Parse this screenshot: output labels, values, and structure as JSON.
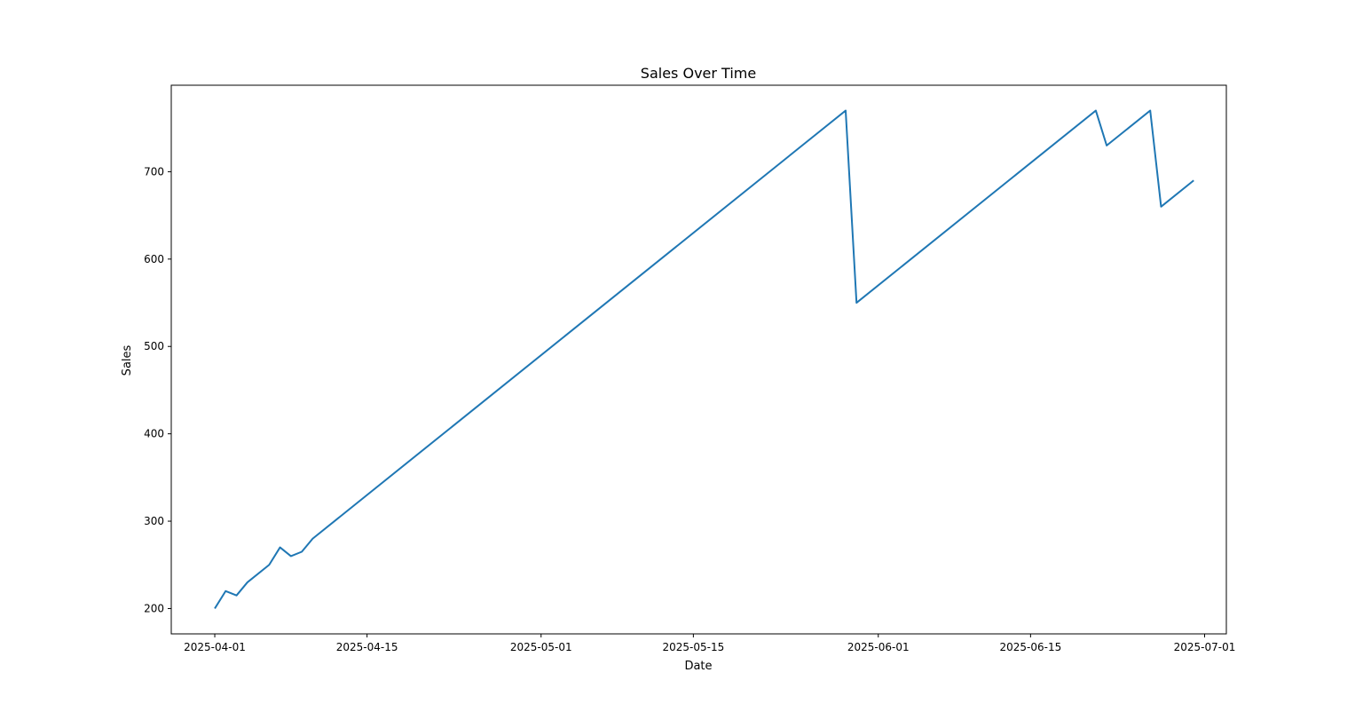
{
  "chart_data": {
    "type": "line",
    "title": "Sales Over Time",
    "xlabel": "Date",
    "ylabel": "Sales",
    "x_axis_type": "date",
    "xlim": [
      "2025-03-28",
      "2025-07-03"
    ],
    "ylim": [
      171,
      799
    ],
    "grid": false,
    "legend": "none",
    "x_ticks": [
      "2025-04-01",
      "2025-04-15",
      "2025-05-01",
      "2025-05-15",
      "2025-06-01",
      "2025-06-15",
      "2025-07-01"
    ],
    "y_ticks": [
      200,
      300,
      400,
      500,
      600,
      700
    ],
    "colors": {
      "series": "#1f77b4",
      "axes": "#000000",
      "background": "#ffffff"
    },
    "series": [
      {
        "x": [
          "2025-04-01",
          "2025-04-02",
          "2025-04-03",
          "2025-04-04",
          "2025-04-06",
          "2025-04-07",
          "2025-04-08",
          "2025-04-09",
          "2025-04-10",
          "2025-05-29",
          "2025-05-30",
          "2025-06-21",
          "2025-06-22",
          "2025-06-26",
          "2025-06-27",
          "2025-06-30"
        ],
        "values": [
          200,
          220,
          215,
          230,
          250,
          270,
          260,
          265,
          280,
          770,
          550,
          770,
          730,
          770,
          660,
          690
        ]
      }
    ]
  }
}
